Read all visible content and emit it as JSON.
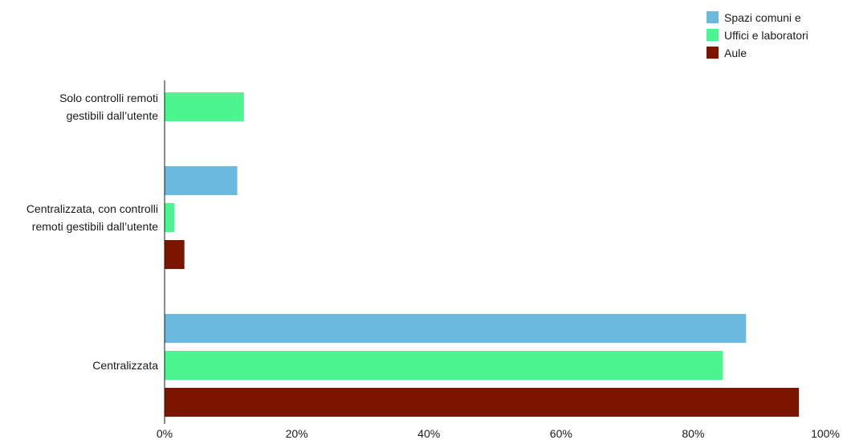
{
  "chart_data": {
    "type": "bar",
    "orientation": "horizontal",
    "categories": [
      [
        "Solo controlli remoti",
        "gestibili dall’utente"
      ],
      [
        "Centralizzata, con controlli",
        "remoti gestibili dall’utente"
      ],
      [
        "Centralizzata"
      ]
    ],
    "series": [
      {
        "name": "Spazi comuni e",
        "color": "#6bb8dc",
        "values": [
          null,
          11,
          88
        ]
      },
      {
        "name": "Uffici e laboratori",
        "color": "#4cf58f",
        "values": [
          12,
          1.5,
          84.5
        ]
      },
      {
        "name": "Aule",
        "color": "#7b1500",
        "values": [
          null,
          3,
          96
        ]
      }
    ],
    "xlim": [
      0,
      100
    ],
    "x_ticks": [
      "0%",
      "20%",
      "40%",
      "60%",
      "80%",
      "100%"
    ],
    "x_tick_values": [
      0,
      20,
      40,
      60,
      80,
      100
    ],
    "grid": false,
    "legend_position": "top-right"
  }
}
